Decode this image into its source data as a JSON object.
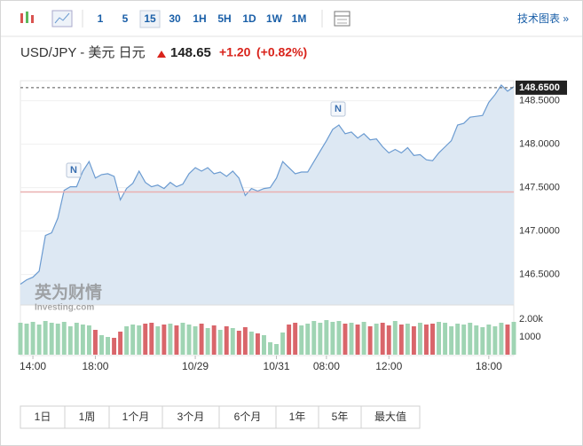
{
  "toolbar": {
    "intervals": [
      "1",
      "5",
      "15",
      "30",
      "1H",
      "5H",
      "1D",
      "1W",
      "1M"
    ],
    "selected": "15",
    "link": "技术图表 »"
  },
  "header": {
    "symbol": "USD/JPY - 美元 日元",
    "price": "148.65",
    "change": "+1.20",
    "change_pct": "(+0.82%)"
  },
  "watermark": {
    "brand": "英为财情",
    "site": "Investing.com"
  },
  "news_markers": [
    {
      "label": "N"
    },
    {
      "label": "N"
    }
  ],
  "ranges": [
    "1日",
    "1周",
    "1个月",
    "3个月",
    "6个月",
    "1年",
    "5年",
    "最大值"
  ],
  "chart_data": [
    {
      "type": "area",
      "color": "#6b9bd1",
      "fill": "#dde8f3",
      "grid": true,
      "categories": [
        null,
        null,
        "14:00",
        null,
        null,
        null,
        null,
        null,
        null,
        null,
        null,
        null,
        "18:00",
        null,
        null,
        null,
        null,
        null,
        null,
        null,
        null,
        null,
        null,
        null,
        null,
        null,
        null,
        null,
        "10/29",
        null,
        null,
        null,
        null,
        null,
        null,
        null,
        null,
        null,
        null,
        null,
        null,
        "10/31",
        null,
        null,
        null,
        null,
        null,
        null,
        null,
        "08:00",
        null,
        null,
        null,
        null,
        null,
        null,
        null,
        null,
        null,
        "12:00",
        null,
        null,
        null,
        null,
        null,
        null,
        null,
        null,
        null,
        null,
        null,
        null,
        null,
        null,
        null,
        "18:00",
        null,
        null,
        null,
        null
      ],
      "values": [
        146.39,
        146.44,
        146.47,
        146.54,
        146.95,
        146.98,
        147.15,
        147.47,
        147.51,
        147.51,
        147.69,
        147.8,
        147.61,
        147.65,
        147.66,
        147.63,
        147.36,
        147.49,
        147.55,
        147.69,
        147.56,
        147.51,
        147.53,
        147.49,
        147.56,
        147.51,
        147.54,
        147.66,
        147.73,
        147.69,
        147.73,
        147.66,
        147.68,
        147.63,
        147.69,
        147.61,
        147.41,
        147.49,
        147.46,
        147.49,
        147.5,
        147.61,
        147.8,
        147.73,
        147.66,
        147.68,
        147.68,
        147.8,
        147.92,
        148.04,
        148.17,
        148.22,
        148.12,
        148.14,
        148.07,
        148.12,
        148.05,
        148.06,
        147.97,
        147.9,
        147.94,
        147.9,
        147.96,
        147.87,
        147.88,
        147.82,
        147.81,
        147.9,
        147.97,
        148.04,
        148.22,
        148.24,
        148.31,
        148.32,
        148.33,
        148.48,
        148.57,
        148.68,
        148.61,
        148.66
      ],
      "ylim": [
        146.15,
        148.72
      ],
      "yticks": [
        {
          "value": 146.5,
          "label": "146.5000"
        },
        {
          "value": 147,
          "label": "147.0000"
        },
        {
          "value": 147.5,
          "label": "147.5000"
        },
        {
          "value": 148,
          "label": "148.0000"
        },
        {
          "value": 148.5,
          "label": "148.5000"
        }
      ],
      "price_line": {
        "value": 148.65,
        "label": "148.6500"
      },
      "reference_line": 147.45,
      "reference_color": "#eab0b0"
    },
    {
      "type": "bar",
      "up_color": "#9fd4b3",
      "down_color": "#d9656a",
      "values": [
        1800,
        1750,
        1850,
        1700,
        1900,
        1800,
        1750,
        1850,
        1600,
        1800,
        1700,
        1650,
        1400,
        1100,
        1000,
        950,
        1300,
        1600,
        1700,
        1650,
        1750,
        1800,
        1600,
        1700,
        1750,
        1650,
        1800,
        1700,
        1600,
        1750,
        1500,
        1650,
        1400,
        1600,
        1500,
        1350,
        1550,
        1300,
        1200,
        1100,
        700,
        600,
        1250,
        1700,
        1800,
        1650,
        1750,
        1900,
        1800,
        1950,
        1850,
        1900,
        1750,
        1800,
        1700,
        1850,
        1600,
        1750,
        1800,
        1650,
        1900,
        1700,
        1750,
        1600,
        1800,
        1700,
        1750,
        1850,
        1800,
        1600,
        1750,
        1700,
        1800,
        1650,
        1550,
        1700,
        1600,
        1800,
        1700,
        1850
      ],
      "ylim": [
        0,
        2350
      ],
      "yticks": [
        {
          "value": 1000,
          "label": "1000"
        },
        {
          "value": 2000,
          "label": "2.00k"
        }
      ]
    }
  ]
}
